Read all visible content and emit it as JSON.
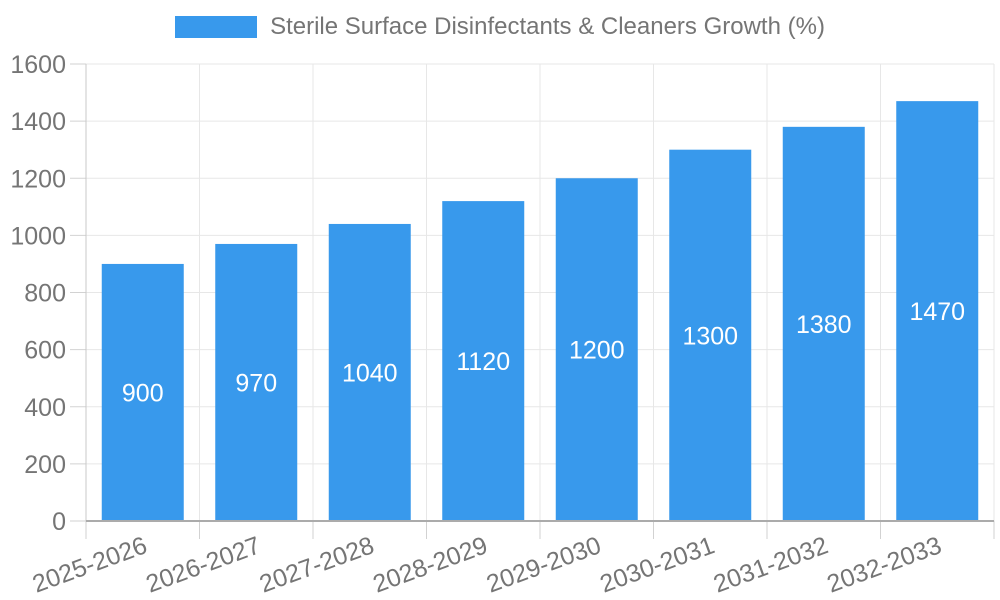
{
  "chart_data": {
    "type": "bar",
    "title": "Sterile Surface Disinfectants & Cleaners Growth (%)",
    "legend_entries": [
      {
        "label": "Sterile Surface Disinfectants & Cleaners Growth (%)",
        "color": "#3899ec"
      }
    ],
    "legend_position": "top-center",
    "categories": [
      "2025-2026",
      "2026-2027",
      "2027-2028",
      "2028-2029",
      "2029-2030",
      "2030-2031",
      "2031-2032",
      "2032-2033"
    ],
    "values": [
      900,
      970,
      1040,
      1120,
      1200,
      1300,
      1380,
      1470
    ],
    "value_labels_visible": true,
    "xlabel": "",
    "ylabel": "",
    "ylim": [
      0,
      1600
    ],
    "ytick_step": 200,
    "yticks": [
      0,
      200,
      400,
      600,
      800,
      1000,
      1200,
      1400,
      1600
    ],
    "grid": true,
    "x_label_rotation_deg": -20,
    "colors": {
      "bar": "#3899ec",
      "value_label": "#ffffff",
      "axis_text": "#757575",
      "grid_line": "#e7e7e7",
      "axis_line": "#ababab",
      "minor_axis_line": "#c9c9c9",
      "tick_line": "#d2d2d2",
      "background": "#ffffff"
    }
  }
}
